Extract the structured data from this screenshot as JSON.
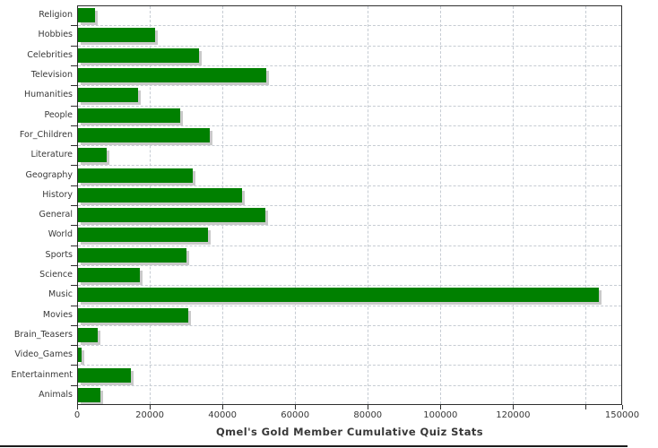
{
  "title": "Qmel's Gold Member Cumulative Quiz Stats",
  "colors": {
    "bar": "#008000",
    "bar_shadow": "#c9c9c9",
    "grid": "#c6ccd3",
    "frame": "#2e2e2e",
    "text": "#383838",
    "bottom_rule": "#1c1c1c",
    "background": "#ffffff"
  },
  "chart_data": {
    "type": "bar",
    "orientation": "horizontal",
    "title": "Qmel's Gold Member Cumulative Quiz Stats",
    "categories": [
      "Religion",
      "Hobbies",
      "Celebrities",
      "Television",
      "Humanities",
      "People",
      "For_Children",
      "Literature",
      "Geography",
      "History",
      "General",
      "World",
      "Sports",
      "Science",
      "Music",
      "Movies",
      "Brain_Teasers",
      "Video_Games",
      "Entertainment",
      "Animals"
    ],
    "values": [
      4700,
      21200,
      33300,
      51800,
      16500,
      28100,
      36300,
      7900,
      31600,
      45100,
      51600,
      35800,
      29900,
      17000,
      143300,
      30300,
      5400,
      1000,
      14600,
      6200
    ],
    "xlabel": "",
    "ylabel": "",
    "xlim": [
      0,
      150000
    ],
    "xticks": [
      0,
      20000,
      40000,
      60000,
      80000,
      100000,
      120000,
      140000
    ],
    "xtick_labels": [
      "0",
      "20000",
      "40000",
      "60000",
      "80000",
      "100000",
      "120000",
      ""
    ],
    "x_end_tick": {
      "value": 150000,
      "label": "150000",
      "clipped_at_right_edge": true
    },
    "grid": "dashed-vertical-and-horizontal",
    "legend": "none"
  }
}
